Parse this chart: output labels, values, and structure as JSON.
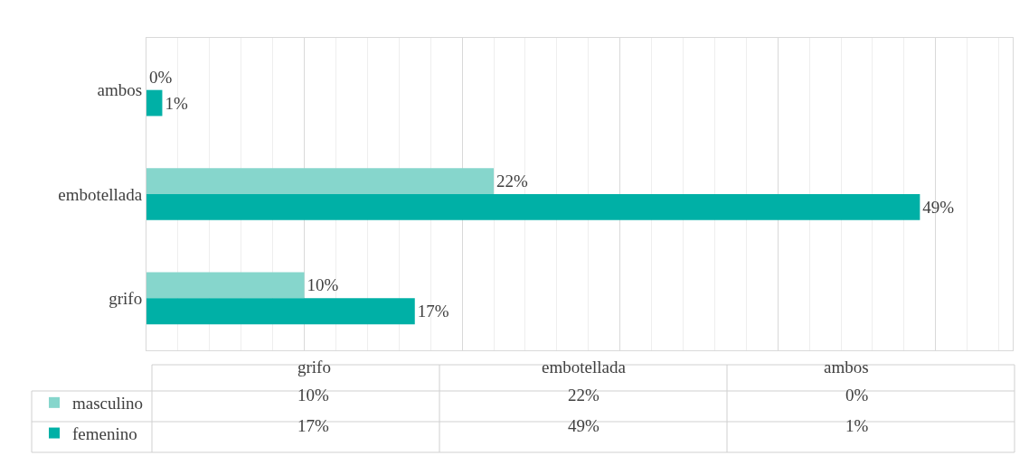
{
  "chart_data": {
    "type": "bar",
    "orientation": "horizontal",
    "categories": [
      "ambos",
      "embotellada",
      "grifo"
    ],
    "series": [
      {
        "name": "masculino",
        "color": "#86d6cc",
        "values": [
          0,
          22,
          10
        ],
        "value_labels": [
          "0%",
          "22%",
          "10%"
        ]
      },
      {
        "name": "femenino",
        "color": "#00b0a6",
        "values": [
          1,
          49,
          17
        ],
        "value_labels": [
          "1%",
          "49%",
          "17%"
        ]
      }
    ],
    "grid": true,
    "legend": "bottom"
  }
}
